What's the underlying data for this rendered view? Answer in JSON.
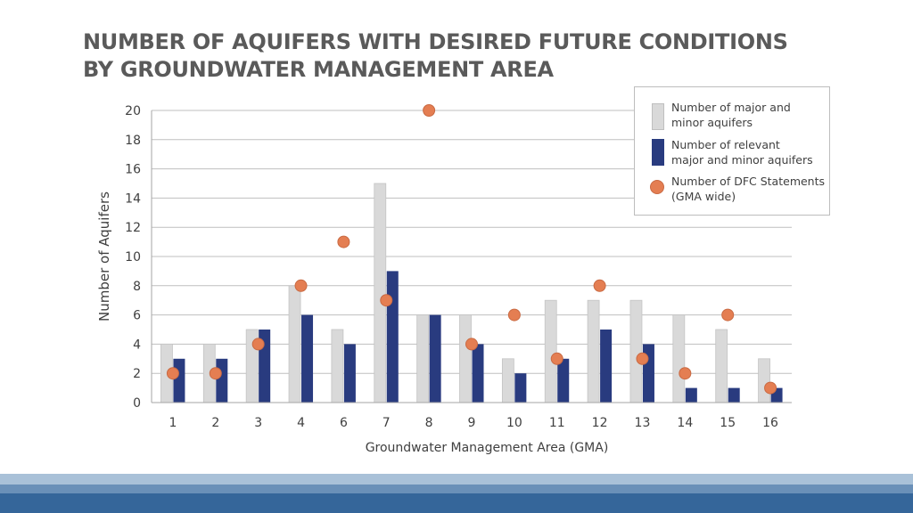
{
  "title": {
    "line1": "NUMBER OF AQUIFERS WITH DESIRED FUTURE CONDITIONS",
    "line2": "BY GROUNDWATER MANAGEMENT AREA"
  },
  "legend": {
    "major_line1": "Number of major and",
    "major_line2": "minor aquifers",
    "relevant_line1": "Number of relevant",
    "relevant_line2": "major and minor aquifers",
    "dfc_line1": "Number of DFC Statements",
    "dfc_line2": "(GMA wide)"
  },
  "colors": {
    "major": "#d9d9d9",
    "relevant": "#293b7f",
    "dfc": "#e47e52",
    "grid": "#bfbfbf"
  },
  "chart_data": {
    "type": "bar",
    "title": "NUMBER OF AQUIFERS WITH DESIRED FUTURE CONDITIONS BY GROUNDWATER MANAGEMENT AREA",
    "xlabel": "Groundwater Management Area (GMA)",
    "ylabel": "Number of Aquifers",
    "ylim": [
      0,
      20
    ],
    "yticks": [
      0,
      2,
      4,
      6,
      8,
      10,
      12,
      14,
      16,
      18,
      20
    ],
    "grid": true,
    "legend_position": "top-right",
    "categories": [
      "1",
      "2",
      "3",
      "4",
      "6",
      "7",
      "8",
      "9",
      "10",
      "11",
      "12",
      "13",
      "14",
      "15",
      "16"
    ],
    "series": [
      {
        "name": "Number of major and minor aquifers",
        "kind": "bar",
        "values": [
          4,
          4,
          5,
          8,
          5,
          15,
          6,
          6,
          3,
          7,
          7,
          7,
          6,
          5,
          3
        ]
      },
      {
        "name": "Number of relevant major and minor aquifers",
        "kind": "bar",
        "values": [
          3,
          3,
          5,
          6,
          4,
          9,
          6,
          4,
          2,
          3,
          5,
          4,
          1,
          1,
          1
        ]
      },
      {
        "name": "Number of DFC Statements (GMA wide)",
        "kind": "dot",
        "values": [
          2,
          2,
          4,
          8,
          11,
          7,
          20,
          4,
          6,
          3,
          8,
          3,
          2,
          6,
          1
        ]
      }
    ]
  }
}
